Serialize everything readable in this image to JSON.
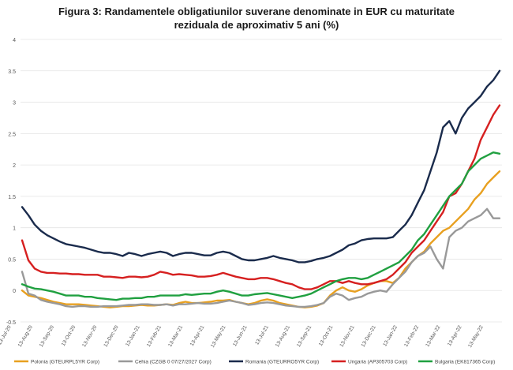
{
  "chart_data": {
    "type": "line",
    "title": "Figura 3: Randamentele obligatiunilor suverane denominate in EUR cu maturitate",
    "subtitle": "reziduala de aproximativ 5 ani (%)",
    "ylim": [
      -0.5,
      4
    ],
    "yticks": [
      "-0.5",
      "0",
      "0.5",
      "1",
      "1.5",
      "2",
      "2.5",
      "3",
      "3.5",
      "4"
    ],
    "xticks": [
      "13-Jul-20",
      "13-Aug-20",
      "13-Sep-20",
      "13-Oct-20",
      "13-Nov-20",
      "13-Dec-20",
      "13-Jan-21",
      "13-Feb-21",
      "13-Mar-21",
      "13-Apr-21",
      "13-May-21",
      "13-Jun-21",
      "13-Jul-21",
      "13-Aug-21",
      "13-Sep-21",
      "13-Oct-21",
      "13-Nov-21",
      "13-Dec-21",
      "13-Jan-22",
      "13-Feb-22",
      "13-Mar-22",
      "13-Apr-22",
      "13-May-22"
    ],
    "grid": true,
    "legend_position": "bottom",
    "series": [
      {
        "name": "Polonia (GTEURPL5YR Corp)",
        "color": "#e8a020",
        "values": [
          0.0,
          -0.08,
          -0.1,
          -0.12,
          -0.15,
          -0.18,
          -0.2,
          -0.22,
          -0.22,
          -0.22,
          -0.23,
          -0.24,
          -0.25,
          -0.26,
          -0.27,
          -0.26,
          -0.25,
          -0.25,
          -0.24,
          -0.23,
          -0.24,
          -0.24,
          -0.23,
          -0.22,
          -0.23,
          -0.2,
          -0.18,
          -0.2,
          -0.2,
          -0.19,
          -0.18,
          -0.16,
          -0.16,
          -0.15,
          -0.18,
          -0.2,
          -0.22,
          -0.2,
          -0.16,
          -0.14,
          -0.16,
          -0.2,
          -0.22,
          -0.24,
          -0.26,
          -0.27,
          -0.26,
          -0.24,
          -0.2,
          -0.08,
          0.0,
          0.05,
          0.0,
          -0.02,
          0.02,
          0.08,
          0.12,
          0.15,
          0.15,
          0.12,
          0.2,
          0.35,
          0.45,
          0.55,
          0.62,
          0.75,
          0.85,
          0.95,
          1.0,
          1.1,
          1.2,
          1.3,
          1.45,
          1.55,
          1.7,
          1.8,
          1.9
        ]
      },
      {
        "name": "Cehia (CZGB 0 07/27/2027 Corp)",
        "color": "#999999",
        "values": [
          0.3,
          -0.05,
          -0.08,
          -0.15,
          -0.18,
          -0.2,
          -0.22,
          -0.25,
          -0.26,
          -0.25,
          -0.25,
          -0.26,
          -0.26,
          -0.25,
          -0.25,
          -0.25,
          -0.24,
          -0.23,
          -0.23,
          -0.22,
          -0.22,
          -0.23,
          -0.23,
          -0.22,
          -0.24,
          -0.22,
          -0.22,
          -0.21,
          -0.2,
          -0.21,
          -0.21,
          -0.2,
          -0.18,
          -0.16,
          -0.18,
          -0.2,
          -0.23,
          -0.22,
          -0.2,
          -0.19,
          -0.2,
          -0.22,
          -0.24,
          -0.25,
          -0.26,
          -0.26,
          -0.25,
          -0.23,
          -0.2,
          -0.1,
          -0.05,
          -0.08,
          -0.15,
          -0.12,
          -0.1,
          -0.05,
          -0.02,
          0.0,
          -0.02,
          0.1,
          0.2,
          0.3,
          0.45,
          0.55,
          0.6,
          0.7,
          0.5,
          0.35,
          0.85,
          0.95,
          1.0,
          1.1,
          1.15,
          1.2,
          1.3,
          1.15,
          1.15
        ]
      },
      {
        "name": "Romania (GTEURRO5YR Corp)",
        "color": "#1a2b4c",
        "values": [
          1.33,
          1.2,
          1.05,
          0.95,
          0.88,
          0.83,
          0.78,
          0.74,
          0.72,
          0.7,
          0.68,
          0.65,
          0.62,
          0.6,
          0.6,
          0.58,
          0.55,
          0.6,
          0.58,
          0.55,
          0.58,
          0.6,
          0.62,
          0.6,
          0.55,
          0.58,
          0.6,
          0.6,
          0.58,
          0.56,
          0.56,
          0.6,
          0.62,
          0.6,
          0.55,
          0.5,
          0.48,
          0.48,
          0.5,
          0.52,
          0.55,
          0.52,
          0.5,
          0.48,
          0.45,
          0.45,
          0.47,
          0.5,
          0.52,
          0.55,
          0.6,
          0.65,
          0.72,
          0.75,
          0.8,
          0.82,
          0.83,
          0.83,
          0.83,
          0.85,
          0.95,
          1.05,
          1.2,
          1.4,
          1.6,
          1.9,
          2.2,
          2.6,
          2.7,
          2.5,
          2.75,
          2.9,
          3.0,
          3.1,
          3.25,
          3.35,
          3.5
        ]
      },
      {
        "name": "Ungaria (AP305703 Corp)",
        "color": "#d62020",
        "values": [
          0.8,
          0.48,
          0.35,
          0.3,
          0.28,
          0.28,
          0.27,
          0.27,
          0.26,
          0.26,
          0.25,
          0.25,
          0.25,
          0.22,
          0.22,
          0.21,
          0.2,
          0.22,
          0.22,
          0.21,
          0.22,
          0.25,
          0.3,
          0.28,
          0.25,
          0.26,
          0.25,
          0.24,
          0.22,
          0.22,
          0.23,
          0.25,
          0.28,
          0.25,
          0.22,
          0.2,
          0.18,
          0.18,
          0.2,
          0.2,
          0.18,
          0.15,
          0.12,
          0.1,
          0.05,
          0.02,
          0.02,
          0.05,
          0.1,
          0.15,
          0.15,
          0.12,
          0.15,
          0.12,
          0.1,
          0.1,
          0.12,
          0.15,
          0.18,
          0.25,
          0.35,
          0.45,
          0.6,
          0.7,
          0.8,
          0.95,
          1.1,
          1.25,
          1.5,
          1.55,
          1.7,
          1.9,
          2.1,
          2.4,
          2.6,
          2.8,
          2.95
        ]
      },
      {
        "name": "Bulgaria (EK817365 Corp)",
        "color": "#20a040",
        "values": [
          0.1,
          0.06,
          0.03,
          0.02,
          0.0,
          -0.02,
          -0.05,
          -0.08,
          -0.08,
          -0.08,
          -0.1,
          -0.1,
          -0.12,
          -0.13,
          -0.14,
          -0.15,
          -0.13,
          -0.13,
          -0.12,
          -0.12,
          -0.1,
          -0.1,
          -0.08,
          -0.08,
          -0.08,
          -0.08,
          -0.06,
          -0.07,
          -0.06,
          -0.05,
          -0.05,
          -0.02,
          0.0,
          -0.02,
          -0.05,
          -0.08,
          -0.08,
          -0.06,
          -0.05,
          -0.04,
          -0.06,
          -0.08,
          -0.1,
          -0.12,
          -0.1,
          -0.08,
          -0.05,
          0.0,
          0.05,
          0.1,
          0.15,
          0.18,
          0.2,
          0.2,
          0.18,
          0.2,
          0.25,
          0.3,
          0.35,
          0.4,
          0.45,
          0.55,
          0.65,
          0.8,
          0.9,
          1.05,
          1.2,
          1.35,
          1.5,
          1.6,
          1.7,
          1.9,
          2.0,
          2.1,
          2.15,
          2.2,
          2.18
        ]
      }
    ]
  }
}
